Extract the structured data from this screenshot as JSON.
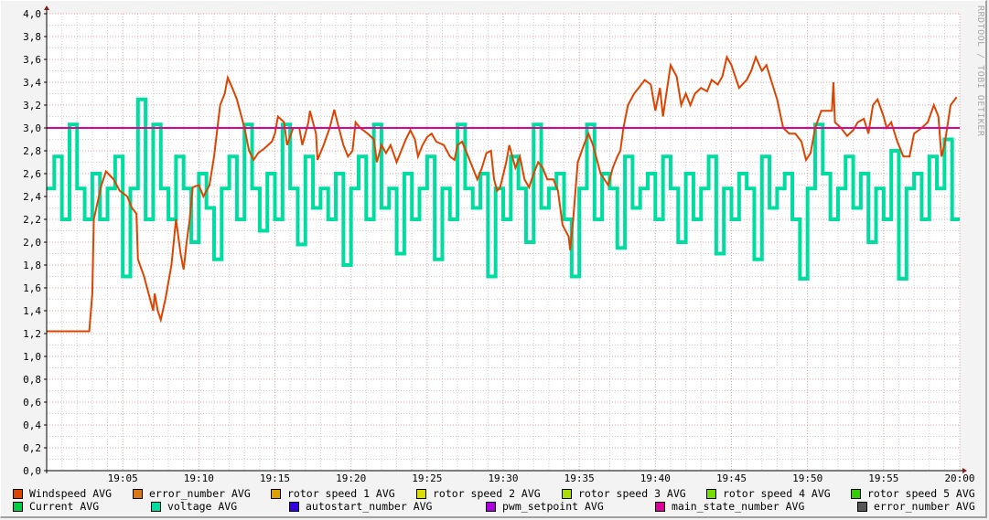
{
  "watermark": "RRDTOOL / TOBI OETIKER",
  "chart_data": {
    "type": "line",
    "title": "",
    "xlabel": "",
    "ylabel": "",
    "ylim": [
      0,
      4.0
    ],
    "xlim": [
      "19:00",
      "20:00"
    ],
    "grid": true,
    "legend_placement": "bottom",
    "y_ticks": [
      "0,0",
      "0,2",
      "0,4",
      "0,6",
      "0,8",
      "1,0",
      "1,2",
      "1,4",
      "1,6",
      "1,8",
      "2,0",
      "2,2",
      "2,4",
      "2,6",
      "2,8",
      "3,0",
      "3,2",
      "3,4",
      "3,6",
      "3,8",
      "4,0"
    ],
    "x_ticks": [
      "19:05",
      "19:10",
      "19:15",
      "19:20",
      "19:25",
      "19:30",
      "19:35",
      "19:40",
      "19:45",
      "19:50",
      "19:55",
      "20:00"
    ],
    "legend": [
      {
        "name": "Windspeed AVG",
        "color": "#dd4400"
      },
      {
        "name": "error_number AVG",
        "color": "#dd7711"
      },
      {
        "name": "rotor speed 1 AVG",
        "color": "#dda000"
      },
      {
        "name": "rotor speed 2 AVG",
        "color": "#dddd00"
      },
      {
        "name": "rotor speed 3 AVG",
        "color": "#aadd00"
      },
      {
        "name": "rotor speed 4 AVG",
        "color": "#77dd00"
      },
      {
        "name": "rotor speed 5 AVG",
        "color": "#33cc00"
      },
      {
        "name": "Current AVG",
        "color": "#00cc44"
      },
      {
        "name": "voltage AVG",
        "color": "#00dda0"
      },
      {
        "name": "autostart_number AVG",
        "color": "#3300dd"
      },
      {
        "name": "pwm_setpoint AVG",
        "color": "#aa00dd"
      },
      {
        "name": "main_state_number AVG",
        "color": "#dd0099"
      },
      {
        "name": "error_number AVG",
        "color": "#555555"
      }
    ],
    "series": [
      {
        "name": "voltage AVG",
        "color": "#00dda0",
        "x_minutes_step": 0.5,
        "values": [
          2.47,
          2.75,
          2.2,
          3.03,
          2.47,
          2.2,
          2.6,
          2.2,
          2.47,
          2.75,
          1.7,
          2.47,
          3.25,
          2.2,
          3.03,
          2.47,
          2.2,
          2.75,
          2.47,
          2.0,
          2.6,
          2.3,
          1.85,
          2.47,
          2.75,
          2.2,
          3.03,
          2.47,
          2.1,
          2.6,
          2.2,
          3.03,
          2.47,
          1.98,
          2.75,
          2.3,
          2.47,
          2.2,
          2.6,
          1.8,
          2.47,
          2.75,
          2.2,
          3.03,
          2.3,
          2.47,
          1.9,
          2.6,
          2.2,
          2.47,
          2.75,
          1.85,
          2.47,
          2.2,
          3.03,
          2.47,
          2.3,
          2.6,
          1.7,
          2.47,
          2.2,
          2.75,
          2.47,
          2.0,
          3.03,
          2.3,
          2.47,
          2.6,
          2.2,
          1.7,
          2.47,
          3.03,
          2.2,
          2.6,
          2.47,
          1.95,
          2.75,
          2.3,
          2.47,
          2.6,
          2.2,
          2.75,
          2.47,
          2.0,
          2.6,
          2.2,
          2.47,
          2.75,
          1.9,
          2.47,
          2.2,
          2.6,
          2.47,
          1.85,
          2.75,
          2.3,
          2.47,
          2.6,
          2.2,
          1.68,
          2.47,
          3.03,
          2.6,
          2.2,
          2.47,
          2.75,
          2.3,
          2.6,
          2.0,
          2.47,
          2.2,
          2.8,
          1.68,
          2.47,
          2.6,
          2.2,
          2.75,
          2.47,
          2.9,
          2.2
        ]
      },
      {
        "name": "Windspeed AVG",
        "color": "#dd4400",
        "points": [
          [
            0,
            1.22
          ],
          [
            2.8,
            1.22
          ],
          [
            3.0,
            1.55
          ],
          [
            3.1,
            2.2
          ],
          [
            3.6,
            2.5
          ],
          [
            3.9,
            2.62
          ],
          [
            4.4,
            2.55
          ],
          [
            4.8,
            2.45
          ],
          [
            5.3,
            2.4
          ],
          [
            5.6,
            2.3
          ],
          [
            5.9,
            2.25
          ],
          [
            6.0,
            1.85
          ],
          [
            6.4,
            1.7
          ],
          [
            6.7,
            1.55
          ],
          [
            7.0,
            1.4
          ],
          [
            7.1,
            1.55
          ],
          [
            7.3,
            1.4
          ],
          [
            7.5,
            1.32
          ],
          [
            7.8,
            1.5
          ],
          [
            8.2,
            1.8
          ],
          [
            8.5,
            2.2
          ],
          [
            8.8,
            1.9
          ],
          [
            9.0,
            1.76
          ],
          [
            9.2,
            2.0
          ],
          [
            9.4,
            2.2
          ],
          [
            9.6,
            2.48
          ],
          [
            10.0,
            2.5
          ],
          [
            10.3,
            2.4
          ],
          [
            10.7,
            2.5
          ],
          [
            11.0,
            2.75
          ],
          [
            11.4,
            3.2
          ],
          [
            11.7,
            3.3
          ],
          [
            11.9,
            3.44
          ],
          [
            12.2,
            3.35
          ],
          [
            12.5,
            3.25
          ],
          [
            13.0,
            3.0
          ],
          [
            13.3,
            2.8
          ],
          [
            13.6,
            2.72
          ],
          [
            13.9,
            2.78
          ],
          [
            14.3,
            2.82
          ],
          [
            14.8,
            2.88
          ],
          [
            15.0,
            2.95
          ],
          [
            15.2,
            3.1
          ],
          [
            15.6,
            3.05
          ],
          [
            15.8,
            2.85
          ],
          [
            16.2,
            3.0
          ],
          [
            16.6,
            3.0
          ],
          [
            16.8,
            2.85
          ],
          [
            17.2,
            3.05
          ],
          [
            17.3,
            3.15
          ],
          [
            17.7,
            2.95
          ],
          [
            17.8,
            2.72
          ],
          [
            18.2,
            2.85
          ],
          [
            18.6,
            3.0
          ],
          [
            18.9,
            3.16
          ],
          [
            19.2,
            3.0
          ],
          [
            19.5,
            2.85
          ],
          [
            19.8,
            2.75
          ],
          [
            20.1,
            2.8
          ],
          [
            20.3,
            3.05
          ],
          [
            20.6,
            3.0
          ],
          [
            21.1,
            2.95
          ],
          [
            21.5,
            2.9
          ],
          [
            21.7,
            2.7
          ],
          [
            22.0,
            2.85
          ],
          [
            22.3,
            2.78
          ],
          [
            22.6,
            2.85
          ],
          [
            23.0,
            2.7
          ],
          [
            23.3,
            2.8
          ],
          [
            23.6,
            2.9
          ],
          [
            23.9,
            2.98
          ],
          [
            24.2,
            2.9
          ],
          [
            24.4,
            2.75
          ],
          [
            24.7,
            2.85
          ],
          [
            25.0,
            2.92
          ],
          [
            25.3,
            2.95
          ],
          [
            25.6,
            2.88
          ],
          [
            26.1,
            2.85
          ],
          [
            26.5,
            2.75
          ],
          [
            26.8,
            2.72
          ],
          [
            27.0,
            2.85
          ],
          [
            27.3,
            2.88
          ],
          [
            27.7,
            2.75
          ],
          [
            28.0,
            2.65
          ],
          [
            28.3,
            2.55
          ],
          [
            28.6,
            2.65
          ],
          [
            28.9,
            2.78
          ],
          [
            29.2,
            2.8
          ],
          [
            29.4,
            2.55
          ],
          [
            29.6,
            2.45
          ],
          [
            29.8,
            2.48
          ],
          [
            30.2,
            2.7
          ],
          [
            30.4,
            2.85
          ],
          [
            30.8,
            2.65
          ],
          [
            31.1,
            2.75
          ],
          [
            31.4,
            2.55
          ],
          [
            31.7,
            2.48
          ],
          [
            32.0,
            2.6
          ],
          [
            32.3,
            2.7
          ],
          [
            32.6,
            2.65
          ],
          [
            32.9,
            2.55
          ],
          [
            33.3,
            2.55
          ],
          [
            33.6,
            2.45
          ],
          [
            33.9,
            2.15
          ],
          [
            34.3,
            2.05
          ],
          [
            34.4,
            1.93
          ],
          [
            34.6,
            2.2
          ],
          [
            34.9,
            2.7
          ],
          [
            35.3,
            2.85
          ],
          [
            35.6,
            2.95
          ],
          [
            35.9,
            2.85
          ],
          [
            36.4,
            2.6
          ],
          [
            36.9,
            2.5
          ],
          [
            37.2,
            2.65
          ],
          [
            37.5,
            2.75
          ],
          [
            37.7,
            2.8
          ],
          [
            37.9,
            3.0
          ],
          [
            38.2,
            3.2
          ],
          [
            38.6,
            3.3
          ],
          [
            38.9,
            3.35
          ],
          [
            39.3,
            3.42
          ],
          [
            39.7,
            3.38
          ],
          [
            40.0,
            3.15
          ],
          [
            40.3,
            3.35
          ],
          [
            40.5,
            3.1
          ],
          [
            41.0,
            3.55
          ],
          [
            41.4,
            3.45
          ],
          [
            41.7,
            3.2
          ],
          [
            42.0,
            3.3
          ],
          [
            42.3,
            3.2
          ],
          [
            42.6,
            3.3
          ],
          [
            43.0,
            3.35
          ],
          [
            43.4,
            3.32
          ],
          [
            43.7,
            3.42
          ],
          [
            44.1,
            3.38
          ],
          [
            44.4,
            3.45
          ],
          [
            44.7,
            3.62
          ],
          [
            45.0,
            3.55
          ],
          [
            45.5,
            3.35
          ],
          [
            46.0,
            3.42
          ],
          [
            46.3,
            3.5
          ],
          [
            46.6,
            3.62
          ],
          [
            47.0,
            3.5
          ],
          [
            47.3,
            3.55
          ],
          [
            47.6,
            3.42
          ],
          [
            48.0,
            3.25
          ],
          [
            48.4,
            3.0
          ],
          [
            48.8,
            2.95
          ],
          [
            49.2,
            2.95
          ],
          [
            49.6,
            2.88
          ],
          [
            49.9,
            2.72
          ],
          [
            50.2,
            2.78
          ],
          [
            50.5,
            3.0
          ],
          [
            50.9,
            3.15
          ],
          [
            51.6,
            3.15
          ],
          [
            51.7,
            3.4
          ],
          [
            51.8,
            3.05
          ],
          [
            52.2,
            3.0
          ],
          [
            52.6,
            2.93
          ],
          [
            53.0,
            2.98
          ],
          [
            53.3,
            3.05
          ],
          [
            53.7,
            3.08
          ],
          [
            54.0,
            2.95
          ],
          [
            54.3,
            3.2
          ],
          [
            54.6,
            3.25
          ],
          [
            55.0,
            3.1
          ],
          [
            55.2,
            3.0
          ],
          [
            55.5,
            3.05
          ],
          [
            55.9,
            2.88
          ],
          [
            56.3,
            2.75
          ],
          [
            56.7,
            2.75
          ],
          [
            57.0,
            2.95
          ],
          [
            57.5,
            3.0
          ],
          [
            57.9,
            3.05
          ],
          [
            58.3,
            3.2
          ],
          [
            58.6,
            3.1
          ],
          [
            58.8,
            2.75
          ],
          [
            59.0,
            2.85
          ],
          [
            59.4,
            3.2
          ],
          [
            59.8,
            3.27
          ]
        ]
      },
      {
        "name": "main_state_number AVG",
        "color": "#dd0099",
        "points": [
          [
            0,
            3.0
          ],
          [
            60,
            3.0
          ]
        ]
      }
    ]
  }
}
